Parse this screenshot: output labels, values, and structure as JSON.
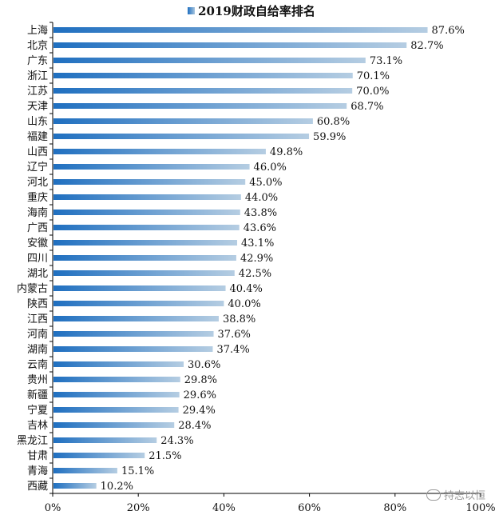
{
  "chart_data": {
    "type": "bar",
    "orientation": "horizontal",
    "title": "2019财政自给率排名",
    "legend": "top-center",
    "grid": false,
    "xlim": [
      0,
      100
    ],
    "x_ticks": [
      "0%",
      "20%",
      "40%",
      "60%",
      "80%",
      "100%"
    ],
    "categories": [
      "上海",
      "北京",
      "广东",
      "浙江",
      "江苏",
      "天津",
      "山东",
      "福建",
      "山西",
      "辽宁",
      "河北",
      "重庆",
      "海南",
      "广西",
      "安徽",
      "四川",
      "湖北",
      "内蒙古",
      "陕西",
      "江西",
      "河南",
      "湖南",
      "云南",
      "贵州",
      "新疆",
      "宁夏",
      "吉林",
      "黑龙江",
      "甘肃",
      "青海",
      "西藏"
    ],
    "values": [
      87.6,
      82.7,
      73.1,
      70.1,
      70.0,
      68.7,
      60.8,
      59.9,
      49.8,
      46.0,
      45.0,
      44.0,
      43.8,
      43.6,
      43.1,
      42.9,
      42.5,
      40.4,
      40.0,
      38.8,
      37.6,
      37.4,
      30.6,
      29.8,
      29.6,
      29.4,
      28.4,
      24.3,
      21.5,
      15.1,
      10.2
    ],
    "value_labels": [
      "87.6%",
      "82.7%",
      "73.1%",
      "70.1%",
      "70.0%",
      "68.7%",
      "60.8%",
      "59.9%",
      "49.8%",
      "46.0%",
      "45.0%",
      "44.0%",
      "43.8%",
      "43.6%",
      "43.1%",
      "42.9%",
      "42.5%",
      "40.4%",
      "40.0%",
      "38.8%",
      "37.6%",
      "37.4%",
      "30.6%",
      "29.8%",
      "29.6%",
      "29.4%",
      "28.4%",
      "24.3%",
      "21.5%",
      "15.1%",
      "10.2%"
    ],
    "colors": {
      "bar_start": "#1f6fc0",
      "bar_end": "#b5cde2",
      "axis": "#000000"
    }
  },
  "watermark": {
    "text": "持志以恒",
    "icon": "chat-bubble-icon"
  }
}
